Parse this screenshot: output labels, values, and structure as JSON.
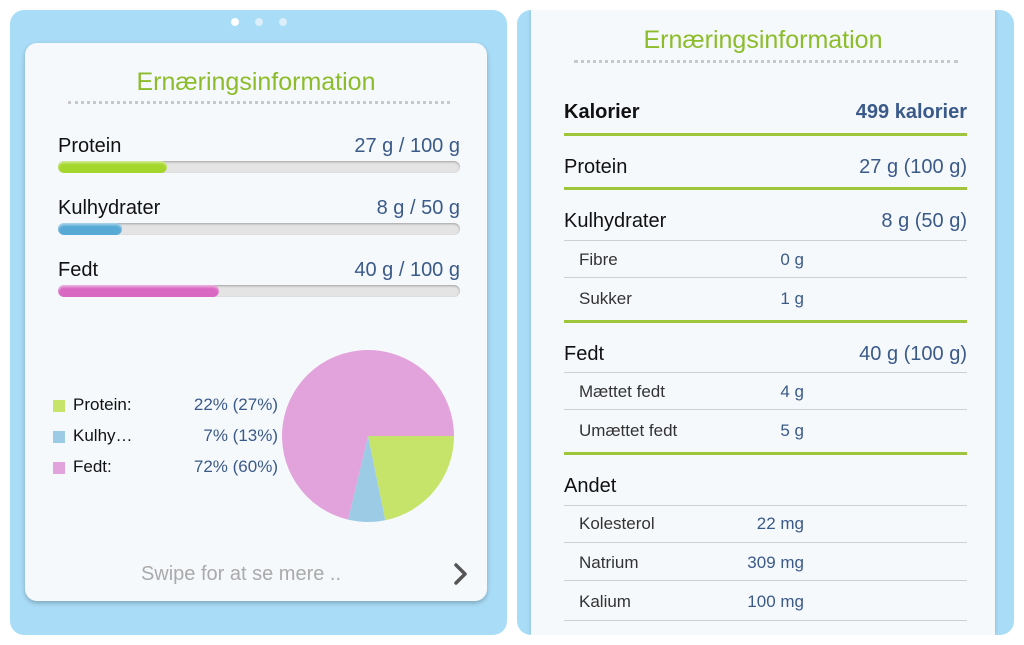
{
  "pager": {
    "pages": 3,
    "active": 0
  },
  "left_card": {
    "title": "Ernæringsinformation",
    "bars": [
      {
        "label": "Protein",
        "value": "27 g / 100 g",
        "progress": 0.27,
        "color": "#a5d62c"
      },
      {
        "label": "Kulhydrater",
        "value": "8 g / 50 g",
        "progress": 0.16,
        "color": "#58aad6"
      },
      {
        "label": "Fedt",
        "value": "40 g / 100 g",
        "progress": 0.4,
        "color": "#d968c2"
      }
    ],
    "legend": [
      {
        "label": "Protein:",
        "value": "22% (27%)",
        "color": "#c6e46a"
      },
      {
        "label": "Kulhy…",
        "value": "7% (13%)",
        "color": "#9ccbe6"
      },
      {
        "label": "Fedt:",
        "value": "72% (60%)",
        "color": "#e2a3dc"
      }
    ],
    "swipe_text": "Swipe for at se mere ..",
    "chevron_icon": "chevron-right-icon"
  },
  "chart_data": {
    "type": "pie",
    "categories": [
      "Protein",
      "Kulhydrater",
      "Fedt"
    ],
    "values": [
      22,
      7,
      72
    ],
    "colors": [
      "#c6e46a",
      "#9ccbe6",
      "#e2a3dc"
    ]
  },
  "right_card": {
    "title": "Ernæringsinformation",
    "calories": {
      "label": "Kalorier",
      "value": "499 kalorier"
    },
    "protein": {
      "label": "Protein",
      "value": "27 g (100 g)"
    },
    "carbs": {
      "label": "Kulhydrater",
      "value": "8 g (50 g)",
      "sub": [
        {
          "label": "Fibre",
          "value": "0 g"
        },
        {
          "label": "Sukker",
          "value": "1 g"
        }
      ]
    },
    "fat": {
      "label": "Fedt",
      "value": "40 g (100 g)",
      "sub": [
        {
          "label": "Mættet fedt",
          "value": "4 g"
        },
        {
          "label": "Umættet fedt",
          "value": "5 g"
        }
      ]
    },
    "other": {
      "label": "Andet",
      "sub": [
        {
          "label": "Kolesterol",
          "value": "22 mg"
        },
        {
          "label": "Natrium",
          "value": "309 mg"
        },
        {
          "label": "Kalium",
          "value": "100 mg"
        }
      ]
    }
  }
}
